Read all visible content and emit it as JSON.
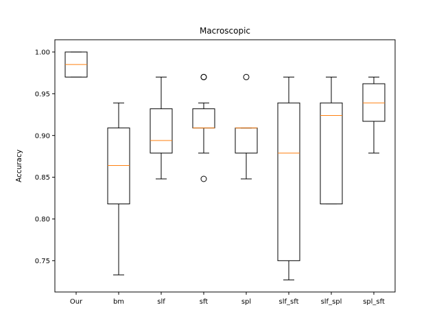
{
  "chart_data": {
    "type": "box",
    "title": "Macroscopic",
    "xlabel": "",
    "ylabel": "Accuracy",
    "ylim": [
      0.7125,
      1.0147
    ],
    "yticks": [
      0.75,
      0.8,
      0.85,
      0.9,
      0.95,
      1.0
    ],
    "ytick_labels": [
      "0.75",
      "0.80",
      "0.85",
      "0.90",
      "0.95",
      "1.00"
    ],
    "grid": false,
    "categories": [
      "Our",
      "bm",
      "slf",
      "sft",
      "spl",
      "slf_sft",
      "slf_spl",
      "spl_sft"
    ],
    "boxes": [
      {
        "whislo": 0.97,
        "q1": 0.97,
        "med": 0.985,
        "q3": 1.0,
        "whishi": 1.0,
        "fliers": []
      },
      {
        "whislo": 0.733,
        "q1": 0.818,
        "med": 0.864,
        "q3": 0.909,
        "whishi": 0.939,
        "fliers": []
      },
      {
        "whislo": 0.848,
        "q1": 0.879,
        "med": 0.894,
        "q3": 0.932,
        "whishi": 0.97,
        "fliers": []
      },
      {
        "whislo": 0.879,
        "q1": 0.909,
        "med": 0.909,
        "q3": 0.932,
        "whishi": 0.939,
        "fliers": [
          0.97,
          0.97,
          0.848
        ]
      },
      {
        "whislo": 0.848,
        "q1": 0.879,
        "med": 0.909,
        "q3": 0.909,
        "whishi": 0.909,
        "fliers": [
          0.97
        ]
      },
      {
        "whislo": 0.727,
        "q1": 0.75,
        "med": 0.879,
        "q3": 0.939,
        "whishi": 0.97,
        "fliers": []
      },
      {
        "whislo": 0.818,
        "q1": 0.818,
        "med": 0.924,
        "q3": 0.939,
        "whishi": 0.97,
        "fliers": []
      },
      {
        "whislo": 0.879,
        "q1": 0.917,
        "med": 0.939,
        "q3": 0.962,
        "whishi": 0.97,
        "fliers": []
      }
    ],
    "colors": {
      "box": "#000000",
      "median": "#ff7f0e",
      "flier": "#000000"
    }
  }
}
